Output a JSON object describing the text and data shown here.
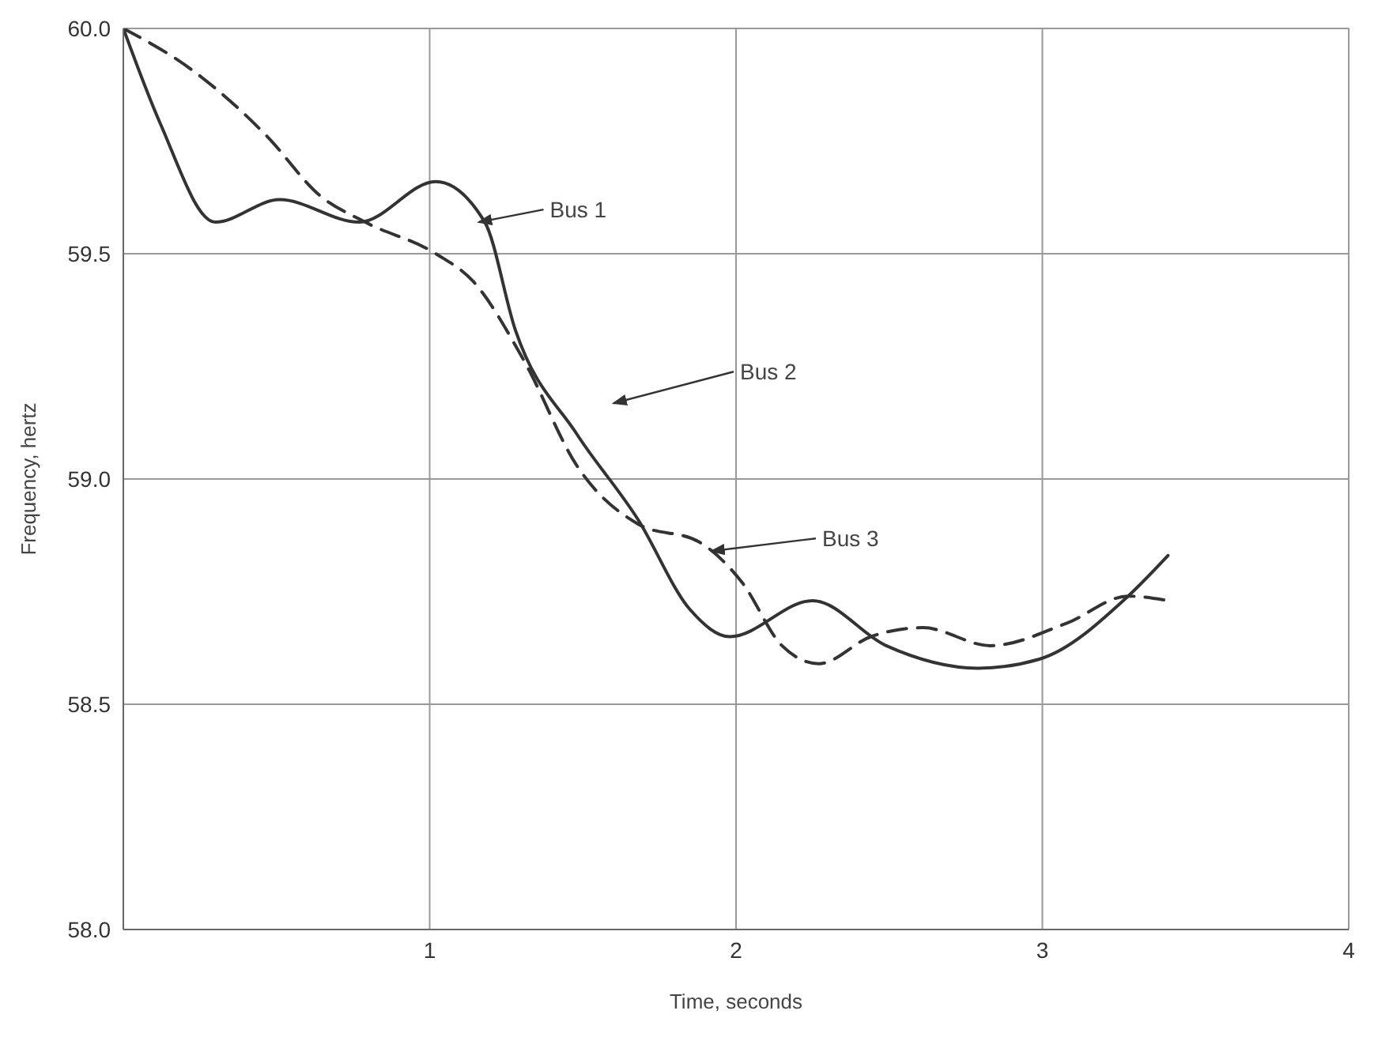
{
  "chart_data": {
    "type": "line",
    "xlabel": "Time, seconds",
    "ylabel": "Frequency, hertz",
    "xlim": [
      0,
      4
    ],
    "ylim": [
      58,
      60
    ],
    "xticks": [
      {
        "value": 0,
        "label": null
      },
      1,
      2,
      3,
      4
    ],
    "yticks": [
      {
        "value": 58,
        "label": "58.0"
      },
      {
        "value": 58.5,
        "label": "58.5"
      },
      {
        "value": 59,
        "label": "59.0"
      },
      {
        "value": 59.5,
        "label": "59.5"
      },
      {
        "value": 60,
        "label": "60.0"
      }
    ],
    "grid": true,
    "legend": false,
    "marker": "none",
    "series": [
      {
        "color": "#333333",
        "line_style": "solid",
        "x": [
          0,
          0.12,
          0.3,
          0.51,
          0.77,
          1.02,
          1.18,
          1.28,
          1.48,
          1.68,
          1.85,
          1.98,
          2.25,
          2.49,
          2.79,
          2.99,
          3.28,
          3.41
        ],
        "values": [
          60.0,
          59.79,
          59.57,
          59.62,
          59.57,
          59.66,
          59.57,
          59.33,
          59.1,
          58.91,
          58.71,
          58.65,
          58.73,
          58.63,
          58.58,
          58.6,
          58.74,
          58.83
        ]
      },
      {
        "color": "#333333",
        "line_style": "dashed",
        "x": [
          0,
          0.22,
          0.47,
          0.64,
          0.79,
          1.02,
          1.14,
          1.31,
          1.48,
          1.68,
          1.88,
          2.02,
          2.15,
          2.27,
          2.44,
          2.61,
          2.83,
          3.08,
          3.28,
          3.41
        ],
        "values": [
          60.0,
          59.91,
          59.76,
          59.63,
          59.57,
          59.5,
          59.44,
          59.26,
          59.03,
          58.9,
          58.86,
          58.77,
          58.63,
          58.59,
          58.65,
          58.67,
          58.63,
          58.68,
          58.74,
          58.73
        ]
      }
    ],
    "annotations": [
      {
        "text": "Bus 1",
        "x": 1.16,
        "y": 59.57
      },
      "Bus 2",
      {
        "text": "Bus 3",
        "x": 1.92,
        "y": 58.84
      }
    ]
  }
}
